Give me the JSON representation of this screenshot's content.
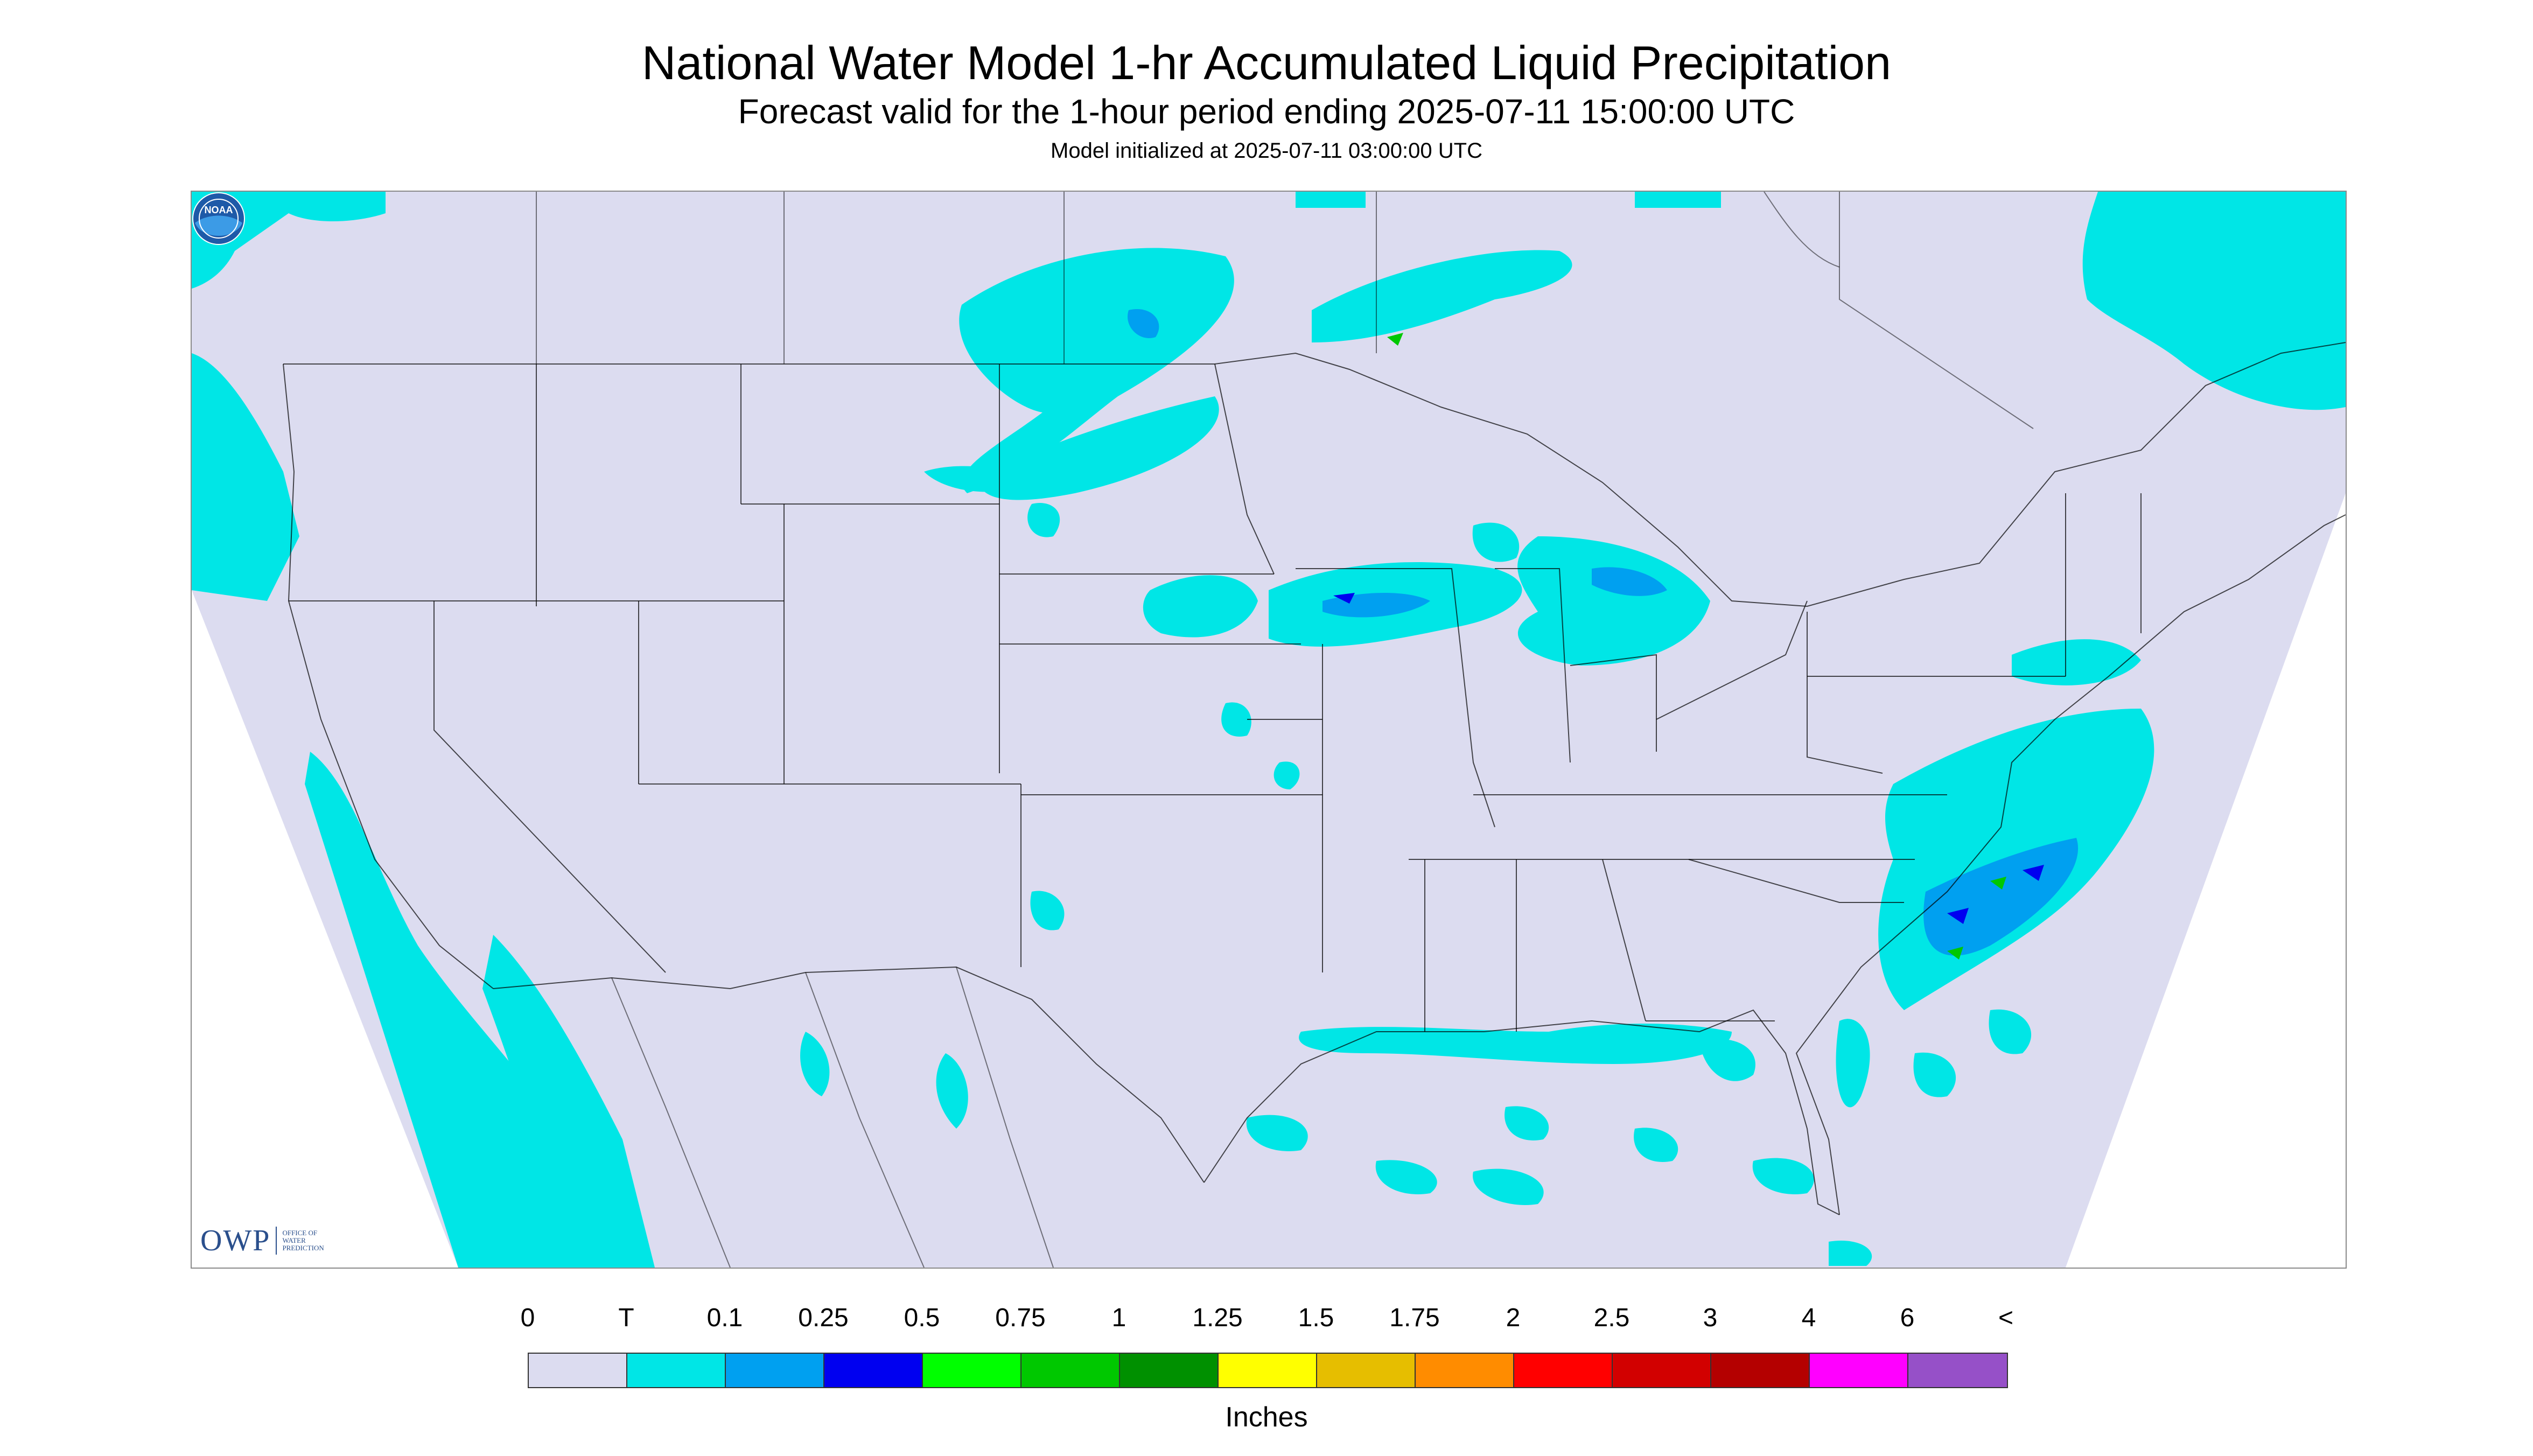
{
  "header": {
    "title": "National Water Model 1-hr Accumulated Liquid Precipitation",
    "subtitle": "Forecast valid for the 1-hour period ending 2025-07-11 15:00:00 UTC",
    "init_line": "Model initialized at 2025-07-11 03:00:00 UTC"
  },
  "logos": {
    "owp_mark": "OWP",
    "owp_text": "OFFICE OF WATER PREDICTION",
    "noaa_text": "NOAA"
  },
  "legend": {
    "labels": [
      "0",
      "T",
      "0.1",
      "0.25",
      "0.5",
      "0.75",
      "1",
      "1.25",
      "1.5",
      "1.75",
      "2",
      "2.5",
      "3",
      "4",
      "6",
      "<"
    ],
    "colors": [
      "#dcdcf0",
      "#00e6e6",
      "#00a0f0",
      "#0000f0",
      "#00ff00",
      "#00c800",
      "#009000",
      "#ffff00",
      "#e6be00",
      "#ff8c00",
      "#ff0000",
      "#d20000",
      "#b40000",
      "#ff00ff",
      "#9650c8"
    ],
    "units": "Inches"
  },
  "map": {
    "background_color": "#dcdcf0",
    "trace_color": "#00e6e6",
    "light_color": "#00a0f0",
    "moderate_color": "#0000f0",
    "green_color": "#00c800",
    "boundary_color": "#000000"
  }
}
